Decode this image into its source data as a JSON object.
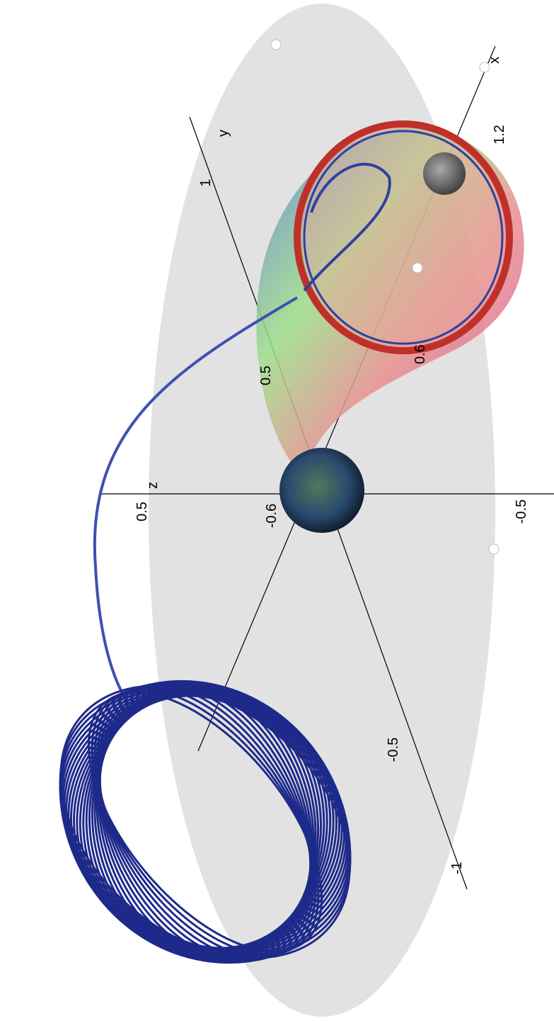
{
  "axes": {
    "x": {
      "label": "x",
      "ticks": [
        1.2,
        0.6,
        -0.6
      ]
    },
    "y": {
      "label": "y",
      "ticks": [
        1,
        0.5,
        -0.5,
        -1
      ]
    },
    "z": {
      "label": "z",
      "ticks": [
        0.5,
        -0.5
      ]
    }
  }
}
